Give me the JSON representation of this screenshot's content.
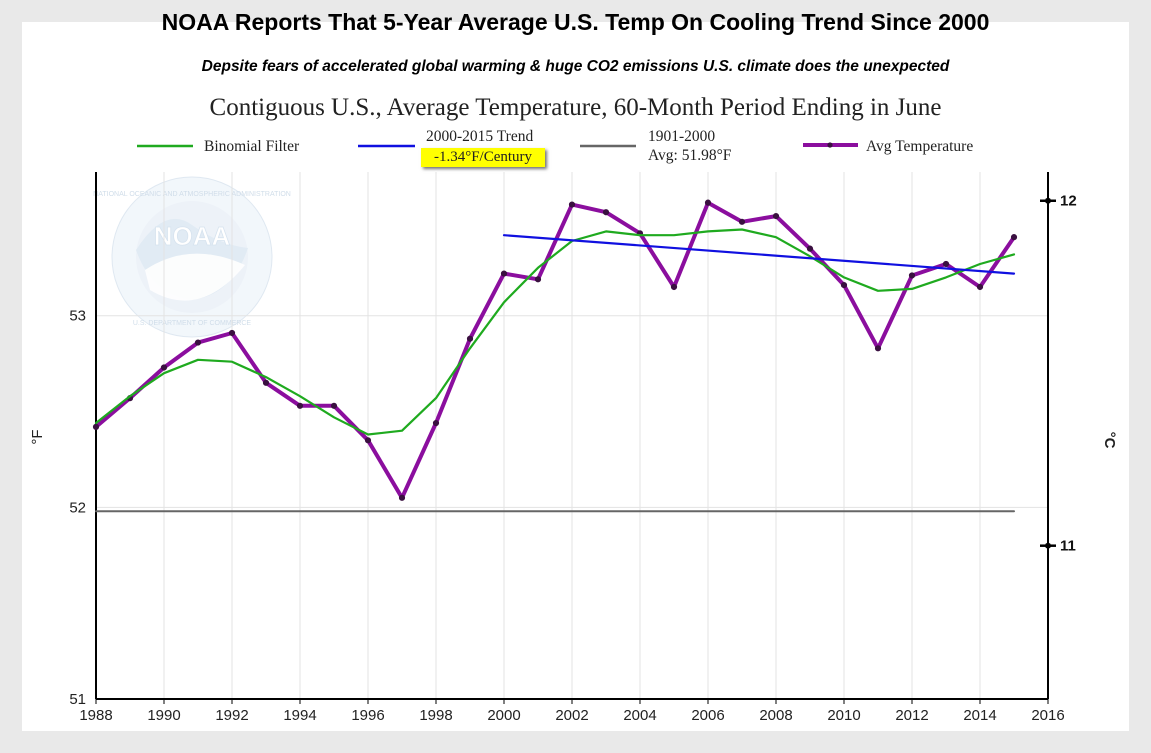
{
  "header": {
    "title": "NOAA Reports That 5-Year Average U.S. Temp On Cooling Trend Since 2000",
    "subtitle": "Depsite fears of accelerated global warming & huge CO2  emissions U.S. climate does the unexpected"
  },
  "logo": {
    "text": "NOAA",
    "ring_text_top": "NATIONAL OCEANIC AND ATMOSPHERIC ADMINISTRATION",
    "ring_text_bottom": "U.S. DEPARTMENT OF COMMERCE"
  },
  "legend": {
    "binomial": "Binomial Filter",
    "trend_label": "2000-2015 Trend",
    "trend_value": "-1.34°F/Century",
    "baseline_label": "1901-2000",
    "baseline_value": "Avg: 51.98°F",
    "avg": "Avg Temperature"
  },
  "colors": {
    "binomial": "#1faa1f",
    "trend": "#1010e0",
    "baseline": "#666666",
    "avg": "#8b0e9e",
    "highlight": "#ffff00"
  },
  "chart_data": {
    "type": "line",
    "title": "Contiguous U.S., Average Temperature, 60-Month Period Ending in June",
    "xlabel": "",
    "ylabel": "°F",
    "ylabel_right": "°C",
    "xlim": [
      1988,
      2016
    ],
    "ylim": [
      51,
      53.75
    ],
    "x_ticks": [
      1988,
      1990,
      1992,
      1994,
      1996,
      1998,
      2000,
      2002,
      2004,
      2006,
      2008,
      2010,
      2012,
      2014,
      2016
    ],
    "y_ticks": [
      51,
      52,
      53
    ],
    "y_ticks_right": [
      11,
      12
    ],
    "grid": true,
    "series": [
      {
        "name": "Avg Temperature",
        "x": [
          1988,
          1989,
          1990,
          1991,
          1992,
          1993,
          1994,
          1995,
          1996,
          1997,
          1998,
          1999,
          2000,
          2001,
          2002,
          2003,
          2004,
          2005,
          2006,
          2007,
          2008,
          2009,
          2010,
          2011,
          2012,
          2013,
          2014,
          2015
        ],
        "values": [
          52.42,
          52.57,
          52.73,
          52.86,
          52.91,
          52.65,
          52.53,
          52.53,
          52.35,
          52.05,
          52.44,
          52.88,
          53.22,
          53.19,
          53.58,
          53.54,
          53.43,
          53.15,
          53.59,
          53.49,
          53.52,
          53.35,
          53.16,
          52.83,
          53.21,
          53.27,
          53.15,
          53.41
        ]
      },
      {
        "name": "Binomial Filter",
        "x": [
          1988,
          1989,
          1990,
          1991,
          1992,
          1993,
          1994,
          1995,
          1996,
          1997,
          1998,
          1999,
          2000,
          2001,
          2002,
          2003,
          2004,
          2005,
          2006,
          2007,
          2008,
          2009,
          2010,
          2011,
          2012,
          2013,
          2014,
          2015
        ],
        "values": [
          52.44,
          52.58,
          52.7,
          52.77,
          52.76,
          52.68,
          52.58,
          52.47,
          52.38,
          52.4,
          52.57,
          52.83,
          53.07,
          53.25,
          53.39,
          53.44,
          53.42,
          53.42,
          53.44,
          53.45,
          53.41,
          53.31,
          53.2,
          53.13,
          53.14,
          53.2,
          53.27,
          53.32
        ]
      },
      {
        "name": "2000-2015 Trend",
        "x": [
          2000,
          2015
        ],
        "values": [
          53.42,
          53.22
        ]
      },
      {
        "name": "1901-2000 Avg",
        "x": [
          1988,
          2015
        ],
        "values": [
          51.98,
          51.98
        ]
      }
    ]
  }
}
